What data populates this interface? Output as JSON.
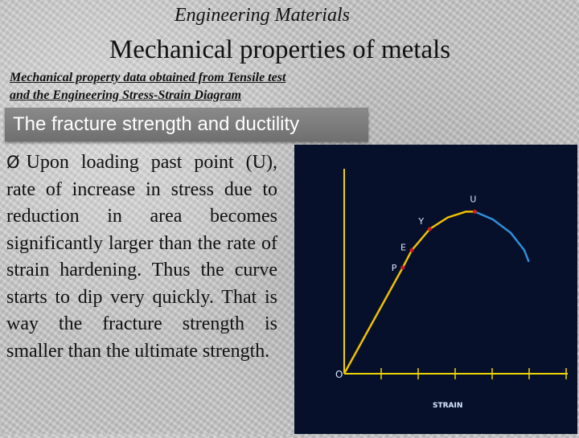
{
  "slide": {
    "subject": "Engineering Materials",
    "title": "Mechanical properties of metals",
    "source_line1": "Mechanical property data obtained from Tensile test",
    "source_line2": "and the Engineering Stress-Strain Diagram",
    "banner": "The fracture strength and ductility",
    "bullet_glyph": "Ø",
    "bullet_text": "Upon loading past point (U), rate of increase in stress due to reduction in area becomes significantly larger than the rate of strain hardening. Thus the curve starts to dip very quickly. That is way the fracture strength is smaller than the ultimate strength."
  },
  "chart_data": {
    "type": "line",
    "x_label": "STRAIN",
    "origin_label": "O",
    "points": [
      {
        "label": "P",
        "strain": 0.26,
        "stress": 0.55
      },
      {
        "label": "E",
        "strain": 0.3,
        "stress": 0.64
      },
      {
        "label": "Y",
        "strain": 0.38,
        "stress": 0.75
      },
      {
        "label": "U",
        "strain": 0.58,
        "stress": 0.84
      }
    ],
    "curve": [
      [
        0.0,
        0.0
      ],
      [
        0.26,
        0.55
      ],
      [
        0.3,
        0.64
      ],
      [
        0.38,
        0.75
      ],
      [
        0.46,
        0.81
      ],
      [
        0.54,
        0.84
      ],
      [
        0.58,
        0.84
      ],
      [
        0.66,
        0.8
      ],
      [
        0.74,
        0.73
      ],
      [
        0.8,
        0.64
      ],
      [
        0.82,
        0.58
      ]
    ],
    "tick_count": 6,
    "colors": {
      "background": "#06102b",
      "axis": "#f0d400",
      "elastic_curve": "#f0c000",
      "plastic_curve": "#2f8fd8",
      "marker": "#d22020",
      "labels": "#d8e8ff"
    }
  }
}
